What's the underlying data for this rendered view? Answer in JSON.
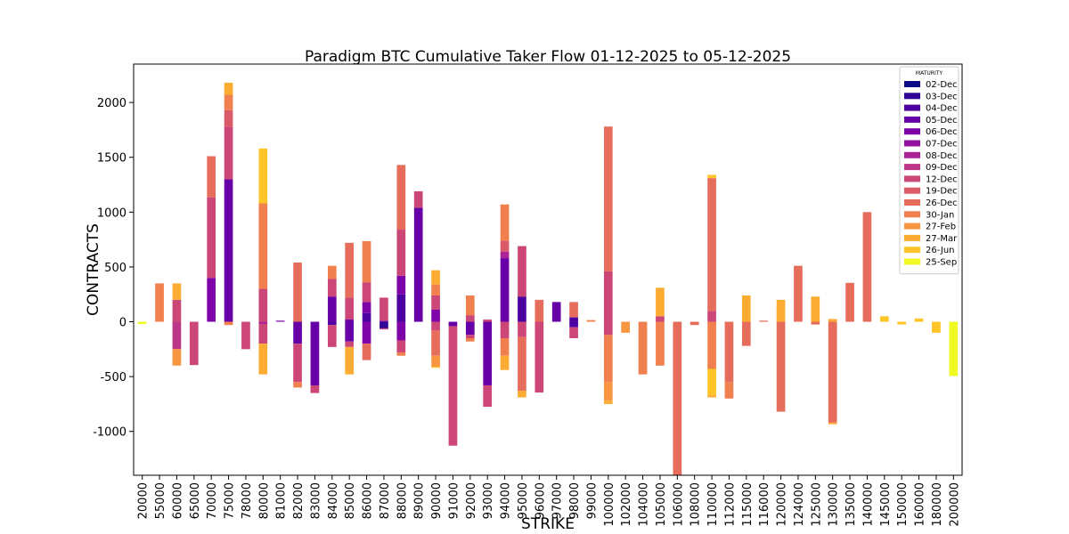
{
  "chart_data": {
    "type": "bar",
    "stacked": true,
    "title": "Paradigm BTC Cumulative Taker Flow 01-12-2025 to 05-12-2025",
    "xlabel": "STRIKE",
    "ylabel": "CONTRACTS",
    "ylim": [
      -1400,
      2350
    ],
    "yticks": [
      -1000,
      -500,
      0,
      500,
      1000,
      1500,
      2000
    ],
    "ytick_labels": [
      "-1000",
      "-500",
      "0",
      "500",
      "1000",
      "1500",
      "2000"
    ],
    "legend_title": "MATURITY",
    "legend_position": "top-right",
    "maturities": [
      "02-Dec",
      "03-Dec",
      "04-Dec",
      "05-Dec",
      "06-Dec",
      "07-Dec",
      "08-Dec",
      "09-Dec",
      "12-Dec",
      "19-Dec",
      "26-Dec",
      "30-Jan",
      "27-Feb",
      "27-Mar",
      "26-Jun",
      "25-Sep"
    ],
    "colors": [
      "#0d0887",
      "#2f0596",
      "#4c02a1",
      "#6600a7",
      "#7e03a8",
      "#9511a1",
      "#aa2395",
      "#bc3587",
      "#cc4778",
      "#da5a6a",
      "#e66c5c",
      "#f0804e",
      "#f89540",
      "#fdac33",
      "#fdc527",
      "#f0f921"
    ],
    "categories": [
      "20000",
      "55000",
      "60000",
      "65000",
      "70000",
      "75000",
      "78000",
      "80000",
      "81000",
      "82000",
      "83000",
      "84000",
      "85000",
      "86000",
      "87000",
      "88000",
      "89000",
      "90000",
      "91000",
      "92000",
      "93000",
      "94000",
      "95000",
      "96000",
      "97000",
      "98000",
      "99000",
      "100000",
      "102000",
      "104000",
      "105000",
      "106000",
      "108000",
      "110000",
      "112000",
      "115000",
      "116000",
      "120000",
      "124000",
      "125000",
      "130000",
      "135000",
      "140000",
      "145000",
      "150000",
      "160000",
      "180000",
      "200000"
    ],
    "stacks": [
      [
        {
          "m": "25-Sep",
          "v": -20
        }
      ],
      [
        {
          "m": "30-Jan",
          "v": 350
        }
      ],
      [
        {
          "m": "12-Dec",
          "v": 200
        },
        {
          "m": "27-Mar",
          "v": 150
        },
        {
          "m": "09-Dec",
          "v": -250
        },
        {
          "m": "27-Feb",
          "v": -150
        }
      ],
      [
        {
          "m": "12-Dec",
          "v": -395
        }
      ],
      [
        {
          "m": "06-Dec",
          "v": 400
        },
        {
          "m": "12-Dec",
          "v": 735
        },
        {
          "m": "26-Dec",
          "v": 375
        }
      ],
      [
        {
          "m": "05-Dec",
          "v": 1300
        },
        {
          "m": "12-Dec",
          "v": 480
        },
        {
          "m": "19-Dec",
          "v": 150
        },
        {
          "m": "30-Jan",
          "v": 140
        },
        {
          "m": "27-Mar",
          "v": 110
        },
        {
          "m": "30-Jan",
          "v": -30
        }
      ],
      [
        {
          "m": "12-Dec",
          "v": -250
        }
      ],
      [
        {
          "m": "08-Dec",
          "v": -20
        },
        {
          "m": "12-Dec",
          "v": 300
        },
        {
          "m": "30-Jan",
          "v": 780
        },
        {
          "m": "26-Jun",
          "v": 500
        },
        {
          "m": "12-Dec",
          "v": -180
        },
        {
          "m": "27-Mar",
          "v": -280
        }
      ],
      [
        {
          "m": "06-Dec",
          "v": 10
        }
      ],
      [
        {
          "m": "26-Dec",
          "v": 540
        },
        {
          "m": "05-Dec",
          "v": -200
        },
        {
          "m": "12-Dec",
          "v": -350
        },
        {
          "m": "30-Jan",
          "v": -50
        }
      ],
      [
        {
          "m": "05-Dec",
          "v": -580
        },
        {
          "m": "12-Dec",
          "v": -70
        }
      ],
      [
        {
          "m": "05-Dec",
          "v": 230
        },
        {
          "m": "12-Dec",
          "v": 160
        },
        {
          "m": "30-Jan",
          "v": 120
        },
        {
          "m": "04-Dec",
          "v": -30
        },
        {
          "m": "12-Dec",
          "v": -200
        }
      ],
      [
        {
          "m": "05-Dec",
          "v": 20
        },
        {
          "m": "12-Dec",
          "v": 200
        },
        {
          "m": "26-Dec",
          "v": 500
        },
        {
          "m": "05-Dec",
          "v": -180
        },
        {
          "m": "12-Dec",
          "v": -50
        },
        {
          "m": "27-Mar",
          "v": -250
        }
      ],
      [
        {
          "m": "04-Dec",
          "v": 80
        },
        {
          "m": "06-Dec",
          "v": 100
        },
        {
          "m": "12-Dec",
          "v": 180
        },
        {
          "m": "30-Jan",
          "v": 375
        },
        {
          "m": "06-Dec",
          "v": -200
        },
        {
          "m": "26-Dec",
          "v": -150
        }
      ],
      [
        {
          "m": "06-Dec",
          "v": 10
        },
        {
          "m": "12-Dec",
          "v": 210
        },
        {
          "m": "03-Dec",
          "v": -60
        },
        {
          "m": "12-Dec",
          "v": -10
        }
      ],
      [
        {
          "m": "04-Dec",
          "v": 250
        },
        {
          "m": "06-Dec",
          "v": 170
        },
        {
          "m": "12-Dec",
          "v": 420
        },
        {
          "m": "26-Dec",
          "v": 590
        },
        {
          "m": "06-Dec",
          "v": -170
        },
        {
          "m": "12-Dec",
          "v": -110
        },
        {
          "m": "30-Jan",
          "v": -30
        }
      ],
      [
        {
          "m": "05-Dec",
          "v": 1040
        },
        {
          "m": "12-Dec",
          "v": 150
        }
      ],
      [
        {
          "m": "06-Dec",
          "v": 110
        },
        {
          "m": "12-Dec",
          "v": 130
        },
        {
          "m": "30-Jan",
          "v": 100
        },
        {
          "m": "27-Mar",
          "v": 130
        },
        {
          "m": "12-Dec",
          "v": -80
        },
        {
          "m": "26-Dec",
          "v": -230
        },
        {
          "m": "27-Feb",
          "v": -100
        },
        {
          "m": "26-Jun",
          "v": -10
        }
      ],
      [
        {
          "m": "05-Dec",
          "v": -40
        },
        {
          "m": "12-Dec",
          "v": -1090
        }
      ],
      [
        {
          "m": "12-Dec",
          "v": 60
        },
        {
          "m": "30-Jan",
          "v": 180
        },
        {
          "m": "05-Dec",
          "v": -120
        },
        {
          "m": "12-Dec",
          "v": -30
        },
        {
          "m": "30-Jan",
          "v": -30
        }
      ],
      [
        {
          "m": "12-Dec",
          "v": 20
        },
        {
          "m": "05-Dec",
          "v": -580
        },
        {
          "m": "12-Dec",
          "v": -195
        }
      ],
      [
        {
          "m": "05-Dec",
          "v": 580
        },
        {
          "m": "08-Dec",
          "v": 60
        },
        {
          "m": "19-Dec",
          "v": 100
        },
        {
          "m": "30-Jan",
          "v": 330
        },
        {
          "m": "12-Dec",
          "v": -150
        },
        {
          "m": "30-Jan",
          "v": -160
        },
        {
          "m": "27-Mar",
          "v": -130
        }
      ],
      [
        {
          "m": "04-Dec",
          "v": 230
        },
        {
          "m": "12-Dec",
          "v": 460
        },
        {
          "m": "12-Dec",
          "v": -140
        },
        {
          "m": "26-Dec",
          "v": -490
        },
        {
          "m": "27-Mar",
          "v": -60
        }
      ],
      [
        {
          "m": "26-Dec",
          "v": 200
        },
        {
          "m": "12-Dec",
          "v": -645
        }
      ],
      [
        {
          "m": "05-Dec",
          "v": 180
        }
      ],
      [
        {
          "m": "04-Dec",
          "v": 40
        },
        {
          "m": "26-Dec",
          "v": 140
        },
        {
          "m": "04-Dec",
          "v": -50
        },
        {
          "m": "12-Dec",
          "v": -100
        }
      ],
      [
        {
          "m": "30-Jan",
          "v": 15
        }
      ],
      [
        {
          "m": "12-Dec",
          "v": 460
        },
        {
          "m": "26-Dec",
          "v": 1320
        },
        {
          "m": "12-Dec",
          "v": -120
        },
        {
          "m": "30-Jan",
          "v": -430
        },
        {
          "m": "27-Feb",
          "v": -170
        },
        {
          "m": "27-Mar",
          "v": -30
        }
      ],
      [
        {
          "m": "27-Feb",
          "v": -100
        }
      ],
      [
        {
          "m": "30-Jan",
          "v": -480
        }
      ],
      [
        {
          "m": "12-Dec",
          "v": 50
        },
        {
          "m": "27-Mar",
          "v": 260
        },
        {
          "m": "30-Jan",
          "v": -400
        }
      ],
      [
        {
          "m": "26-Dec",
          "v": -1400
        }
      ],
      [
        {
          "m": "26-Dec",
          "v": -30
        }
      ],
      [
        {
          "m": "12-Dec",
          "v": 100
        },
        {
          "m": "26-Dec",
          "v": 1210
        },
        {
          "m": "26-Jun",
          "v": 30
        },
        {
          "m": "30-Jan",
          "v": -430
        },
        {
          "m": "26-Jun",
          "v": -240
        },
        {
          "m": "27-Mar",
          "v": -20
        }
      ],
      [
        {
          "m": "26-Dec",
          "v": -550
        },
        {
          "m": "30-Jan",
          "v": -150
        }
      ],
      [
        {
          "m": "27-Mar",
          "v": 240
        },
        {
          "m": "26-Dec",
          "v": -220
        }
      ],
      [
        {
          "m": "26-Dec",
          "v": 10
        }
      ],
      [
        {
          "m": "27-Mar",
          "v": 200
        },
        {
          "m": "26-Dec",
          "v": -820
        }
      ],
      [
        {
          "m": "26-Dec",
          "v": 510
        }
      ],
      [
        {
          "m": "27-Mar",
          "v": 230
        },
        {
          "m": "26-Dec",
          "v": -25
        }
      ],
      [
        {
          "m": "27-Mar",
          "v": 25
        },
        {
          "m": "26-Dec",
          "v": -920
        },
        {
          "m": "27-Mar",
          "v": -15
        }
      ],
      [
        {
          "m": "26-Dec",
          "v": 355
        }
      ],
      [
        {
          "m": "26-Dec",
          "v": 1000
        }
      ],
      [
        {
          "m": "26-Jun",
          "v": 50
        }
      ],
      [
        {
          "m": "26-Jun",
          "v": -25
        }
      ],
      [
        {
          "m": "26-Jun",
          "v": 30
        }
      ],
      [
        {
          "m": "26-Jun",
          "v": -100
        }
      ],
      [
        {
          "m": "25-Sep",
          "v": -495
        }
      ]
    ]
  }
}
